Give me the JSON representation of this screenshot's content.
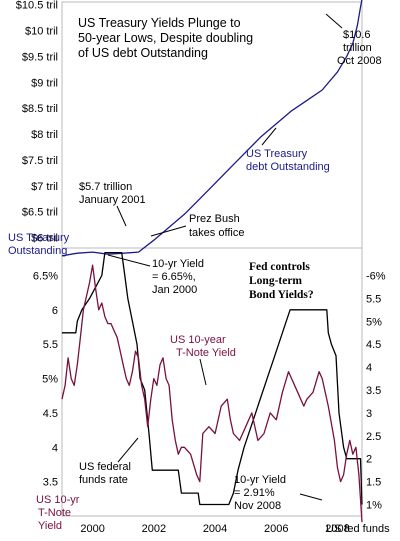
{
  "chart_data": [
    {
      "type": "line",
      "title": "US Treasury Yields Plunge to 50-year Lows, Despite doubling of US debt Outstanding",
      "title_lines": [
        "US Treasury Yields Plunge to",
        "50-year Lows, Despite doubling",
        "of US debt Outstanding"
      ],
      "ylim": [
        5.8,
        10.55
      ],
      "y_ticks": [
        "$10.5 tril",
        "$10 tril",
        "$9.5 tril",
        "$9 tril",
        "$8.5 tril",
        "$8 tril",
        "$7.5 tril",
        "$7 tril",
        "$6.5 tril",
        "$6 tril"
      ],
      "y_tick_values": [
        10.5,
        10.0,
        9.5,
        9.0,
        8.5,
        8.0,
        7.5,
        7.0,
        6.5,
        6.0
      ],
      "series": [
        {
          "name": "US Treasury debt Outstanding",
          "color": "#1a1a8c",
          "x": [
            1999.0,
            1999.5,
            2000.0,
            2000.5,
            2001.0,
            2001.5,
            2002.0,
            2002.5,
            2003.0,
            2003.5,
            2004.0,
            2004.5,
            2005.0,
            2005.5,
            2006.0,
            2006.5,
            2007.0,
            2007.5,
            2008.0,
            2008.3,
            2008.5,
            2008.65,
            2008.75,
            2008.8
          ],
          "values": [
            5.65,
            5.7,
            5.72,
            5.68,
            5.7,
            5.72,
            5.95,
            6.2,
            6.45,
            6.75,
            7.05,
            7.35,
            7.65,
            7.95,
            8.2,
            8.45,
            8.65,
            8.85,
            9.2,
            9.5,
            9.75,
            10.1,
            10.45,
            10.6
          ]
        }
      ],
      "labels": {
        "left_axis_label": [
          "US Treasury",
          "Outstanding"
        ],
        "debt_series_label": [
          "US Treasury",
          "debt Outstanding"
        ],
        "annotation_2001": [
          "$5.7 trillion",
          "January 2001"
        ],
        "annotation_bush": [
          "Prez Bush",
          "takes office"
        ],
        "annotation_peak": [
          "$10.6",
          "trillion",
          "Oct 2008"
        ]
      }
    },
    {
      "type": "line",
      "xlim": [
        1999.0,
        2008.8
      ],
      "x_ticks": [
        "2000",
        "2002",
        "2004",
        "2006",
        "2008"
      ],
      "x_tick_values": [
        2000,
        2002,
        2004,
        2006,
        2008
      ],
      "left_ylim": [
        3.0,
        6.9
      ],
      "left_ticks": [
        "6.5%",
        "6",
        "5.5",
        "5%",
        "4.5",
        "4",
        "3.5"
      ],
      "left_tick_values": [
        6.5,
        6.0,
        5.5,
        5.0,
        4.5,
        4.0,
        3.5
      ],
      "right_ylim": [
        0.75,
        6.6
      ],
      "right_ticks": [
        "-6%",
        "5.5",
        "5%",
        "4.5",
        "4",
        "3.5",
        "3",
        "2.5",
        "2",
        "1.5",
        "1%"
      ],
      "right_tick_values": [
        6.0,
        5.5,
        5.0,
        4.5,
        4.0,
        3.5,
        3.0,
        2.5,
        2.0,
        1.5,
        1.0
      ],
      "series": [
        {
          "name": "US 10-year T-Note Yield",
          "axis": "left",
          "color": "#7a1040",
          "x": [
            1999.0,
            1999.1,
            1999.2,
            1999.3,
            1999.4,
            1999.5,
            1999.6,
            1999.7,
            1999.8,
            1999.9,
            2000.0,
            2000.1,
            2000.2,
            2000.3,
            2000.4,
            2000.5,
            2000.6,
            2000.7,
            2000.8,
            2000.9,
            2001.0,
            2001.1,
            2001.2,
            2001.3,
            2001.4,
            2001.5,
            2001.6,
            2001.7,
            2001.8,
            2001.9,
            2002.0,
            2002.1,
            2002.2,
            2002.3,
            2002.4,
            2002.5,
            2002.6,
            2002.7,
            2002.8,
            2002.9,
            2003.0,
            2003.2,
            2003.4,
            2003.5,
            2003.6,
            2003.8,
            2004.0,
            2004.2,
            2004.4,
            2004.5,
            2004.6,
            2004.8,
            2005.0,
            2005.2,
            2005.4,
            2005.6,
            2005.8,
            2006.0,
            2006.2,
            2006.4,
            2006.5,
            2006.7,
            2006.9,
            2007.0,
            2007.2,
            2007.4,
            2007.5,
            2007.7,
            2007.9,
            2008.0,
            2008.1,
            2008.2,
            2008.3,
            2008.4,
            2008.5,
            2008.6,
            2008.7,
            2008.8
          ],
          "values": [
            4.7,
            4.9,
            5.3,
            5.0,
            4.9,
            5.2,
            5.6,
            6.0,
            6.2,
            6.4,
            6.65,
            6.3,
            6.0,
            6.1,
            5.9,
            5.8,
            5.8,
            5.7,
            5.6,
            5.4,
            5.2,
            5.0,
            4.9,
            5.1,
            5.4,
            5.3,
            4.9,
            4.7,
            4.3,
            4.7,
            5.0,
            4.9,
            5.2,
            5.3,
            5.0,
            4.9,
            4.4,
            4.1,
            3.9,
            4.0,
            4.0,
            3.9,
            3.6,
            3.5,
            4.2,
            4.3,
            4.2,
            4.6,
            4.7,
            4.4,
            4.2,
            4.1,
            4.3,
            4.5,
            4.1,
            4.2,
            4.5,
            4.4,
            4.8,
            5.1,
            5.0,
            4.8,
            4.6,
            4.7,
            4.8,
            5.1,
            5.0,
            4.6,
            4.1,
            3.7,
            3.5,
            3.6,
            3.9,
            4.1,
            3.9,
            4.0,
            3.6,
            2.91
          ]
        },
        {
          "name": "US federal funds rate",
          "axis": "right",
          "color": "#000000",
          "x": [
            1999.0,
            1999.45,
            1999.5,
            1999.65,
            1999.9,
            2000.1,
            2000.3,
            2000.4,
            2000.95,
            2001.05,
            2001.15,
            2001.3,
            2001.45,
            2001.55,
            2001.7,
            2001.85,
            2001.95,
            2002.8,
            2002.9,
            2003.45,
            2003.5,
            2004.45,
            2004.6,
            2004.75,
            2004.95,
            2005.2,
            2005.45,
            2005.7,
            2005.95,
            2006.2,
            2006.45,
            2006.5,
            2007.65,
            2007.7,
            2007.8,
            2007.95,
            2008.05,
            2008.2,
            2008.3,
            2008.75,
            2008.8
          ],
          "values": [
            4.75,
            4.75,
            5.0,
            5.25,
            5.5,
            5.75,
            6.0,
            6.5,
            6.5,
            6.0,
            5.5,
            5.0,
            4.5,
            3.75,
            3.5,
            2.5,
            1.75,
            1.75,
            1.25,
            1.25,
            1.0,
            1.0,
            1.25,
            1.75,
            2.25,
            2.75,
            3.25,
            3.75,
            4.25,
            4.75,
            5.25,
            5.25,
            5.25,
            4.75,
            4.5,
            4.25,
            3.0,
            2.25,
            2.0,
            2.0,
            1.0
          ]
        }
      ],
      "labels": {
        "yield_series_label": [
          "US 10-year",
          "T-Note Yield"
        ],
        "fed_series_label": [
          "US federal",
          "funds rate"
        ],
        "annotation_2000": [
          "10-yr Yield",
          "= 6.65%,",
          "Jan 2000"
        ],
        "annotation_2008": [
          "10-yr Yield",
          "= 2.91%",
          "Nov 2008"
        ],
        "question": [
          "Fed controls",
          "Long-term",
          "Bond Yields?"
        ],
        "left_axis_label": [
          "US 10-yr",
          "T-Note",
          "Yield"
        ],
        "right_axis_label": "US fed funds"
      }
    }
  ]
}
